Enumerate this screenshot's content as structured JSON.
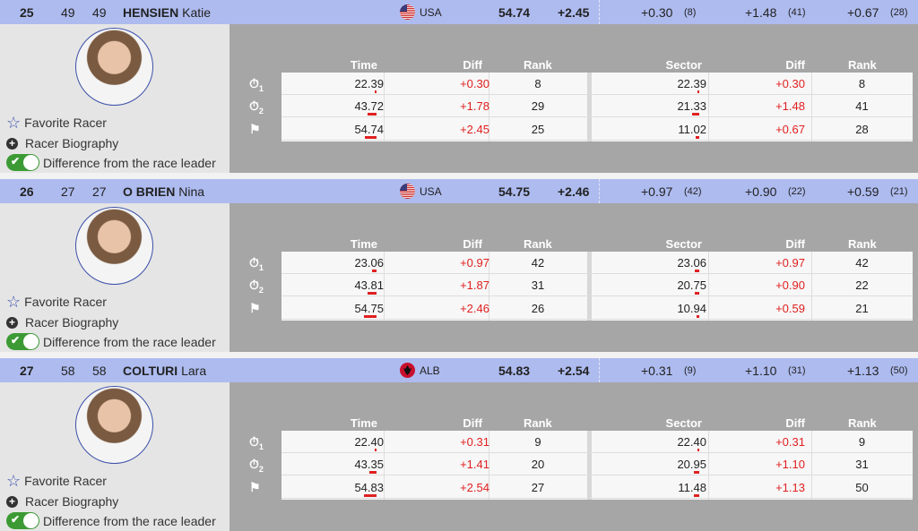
{
  "labels": {
    "favorite": "Favorite Racer",
    "biography": "Racer Biography",
    "difference": "Difference from the race leader",
    "time": "Time",
    "diff": "Diff",
    "rank": "Rank",
    "sector": "Sector"
  },
  "icons": {
    "split1": "stopwatch-1-icon",
    "split2": "stopwatch-2-icon",
    "finish": "flag-icon",
    "favorite": "star-icon",
    "bio": "plus-circle-icon",
    "toggle": "toggle-on"
  },
  "colors": {
    "header": "#aebbef",
    "diff_red": "#e02020",
    "toggle_green": "#3c9a35"
  },
  "difference_toggle_on": true,
  "racers": [
    {
      "rank": "25",
      "bib": "49",
      "start": "49",
      "surname": "HENSIEN",
      "firstname": "Katie",
      "country": "USA",
      "time": "54.74",
      "diff": "+2.45",
      "splits": [
        {
          "diff": "+0.30",
          "rank": "(8)"
        },
        {
          "diff": "+1.48",
          "rank": "(41)"
        },
        {
          "diff": "+0.67",
          "rank": "(28)"
        }
      ],
      "rows": [
        {
          "time": "22.39",
          "diff": "+0.30",
          "rank": "8",
          "sector": "22.39",
          "sdiff": "+0.30",
          "srank": "8"
        },
        {
          "time": "43.72",
          "diff": "+1.78",
          "rank": "29",
          "sector": "21.33",
          "sdiff": "+1.48",
          "srank": "41"
        },
        {
          "time": "54.74",
          "diff": "+2.45",
          "rank": "25",
          "sector": "11.02",
          "sdiff": "+0.67",
          "srank": "28"
        }
      ]
    },
    {
      "rank": "26",
      "bib": "27",
      "start": "27",
      "surname": "O BRIEN",
      "firstname": "Nina",
      "country": "USA",
      "time": "54.75",
      "diff": "+2.46",
      "splits": [
        {
          "diff": "+0.97",
          "rank": "(42)"
        },
        {
          "diff": "+0.90",
          "rank": "(22)"
        },
        {
          "diff": "+0.59",
          "rank": "(21)"
        }
      ],
      "rows": [
        {
          "time": "23.06",
          "diff": "+0.97",
          "rank": "42",
          "sector": "23.06",
          "sdiff": "+0.97",
          "srank": "42"
        },
        {
          "time": "43.81",
          "diff": "+1.87",
          "rank": "31",
          "sector": "20.75",
          "sdiff": "+0.90",
          "srank": "22"
        },
        {
          "time": "54.75",
          "diff": "+2.46",
          "rank": "26",
          "sector": "10.94",
          "sdiff": "+0.59",
          "srank": "21"
        }
      ]
    },
    {
      "rank": "27",
      "bib": "58",
      "start": "58",
      "surname": "COLTURI",
      "firstname": "Lara",
      "country": "ALB",
      "time": "54.83",
      "diff": "+2.54",
      "splits": [
        {
          "diff": "+0.31",
          "rank": "(9)"
        },
        {
          "diff": "+1.10",
          "rank": "(31)"
        },
        {
          "diff": "+1.13",
          "rank": "(50)"
        }
      ],
      "rows": [
        {
          "time": "22.40",
          "diff": "+0.31",
          "rank": "9",
          "sector": "22.40",
          "sdiff": "+0.31",
          "srank": "9"
        },
        {
          "time": "43.35",
          "diff": "+1.41",
          "rank": "20",
          "sector": "20.95",
          "sdiff": "+1.10",
          "srank": "31"
        },
        {
          "time": "54.83",
          "diff": "+2.54",
          "rank": "27",
          "sector": "11.48",
          "sdiff": "+1.13",
          "srank": "50"
        }
      ]
    }
  ]
}
